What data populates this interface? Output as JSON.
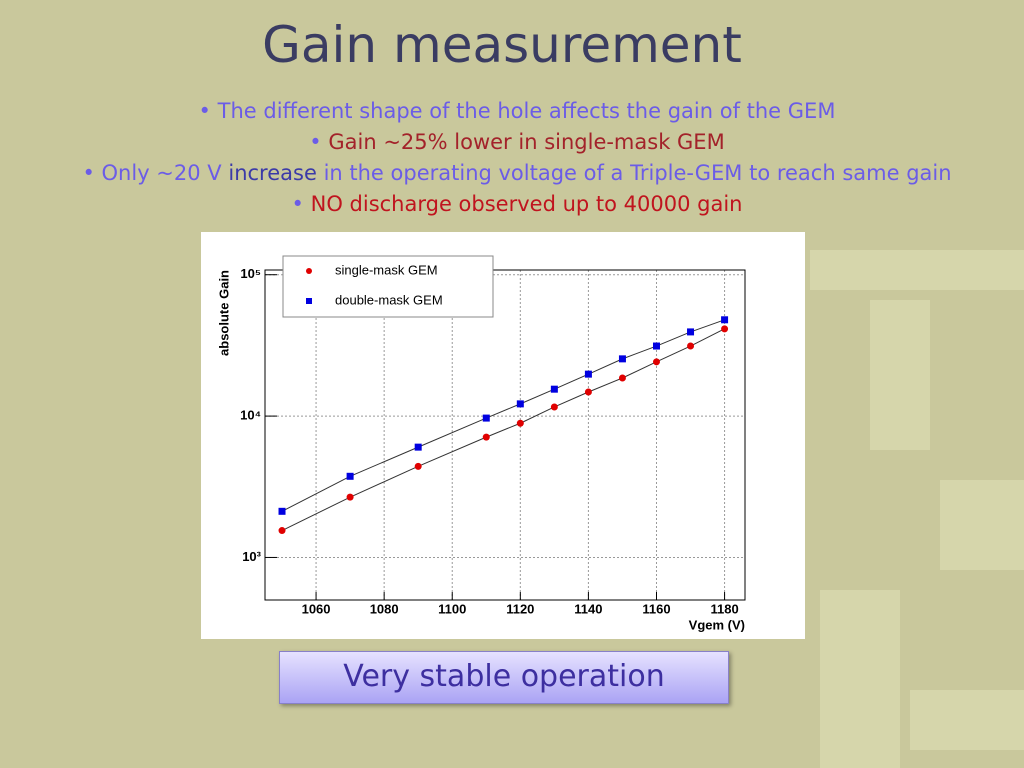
{
  "title": "Gain measurement",
  "bullets": [
    [
      {
        "text": "•",
        "color": "#6b5ce7"
      },
      {
        "text": "The different shape of the hole affects the gain of the GEM",
        "color": "#6b5ce7"
      }
    ],
    [
      {
        "text": "•",
        "color": "#6b5ce7"
      },
      {
        "text": "Gain ~25% lower in single-mask GEM",
        "color": "#a3222a"
      }
    ],
    [
      {
        "text": "•",
        "color": "#6b5ce7"
      },
      {
        "text": "Only ~20 V",
        "color": "#6b5ce7"
      },
      {
        "text": "increase",
        "color": "#3b3aa8"
      },
      {
        "text": "in the operating voltage of a Triple-GEM to reach same gain",
        "color": "#6b5ce7"
      }
    ],
    [
      {
        "text": "•",
        "color": "#6b5ce7"
      },
      {
        "text": "NO discharge observed up to 40000 gain",
        "color": "#c0141e"
      }
    ]
  ],
  "button": "Very stable operation",
  "chart_data": {
    "type": "line",
    "x_label": "Vgem (V)",
    "y_label": "absolute Gain",
    "x": [
      1050,
      1070,
      1090,
      1110,
      1120,
      1130,
      1140,
      1150,
      1160,
      1170,
      1180
    ],
    "series": [
      {
        "name": "single-mask GEM",
        "color": "#e00000",
        "marker": "circle",
        "values": [
          1550,
          2670,
          4410,
          7100,
          8900,
          11600,
          14800,
          18600,
          24200,
          31300,
          41400
        ]
      },
      {
        "name": "double-mask GEM",
        "color": "#0000e0",
        "marker": "square",
        "values": [
          2120,
          3750,
          6030,
          9680,
          12200,
          15500,
          19800,
          25400,
          31300,
          39400,
          48000
        ]
      }
    ],
    "xlim": [
      1045,
      1186
    ],
    "xticks": [
      1060,
      1080,
      1100,
      1120,
      1140,
      1160,
      1180
    ],
    "ylim": [
      500,
      108000
    ],
    "log_y": true,
    "yticks": [
      {
        "value": 1000,
        "label": "10³"
      },
      {
        "value": 10000,
        "label": "10⁴"
      },
      {
        "value": 100000,
        "label": "10⁵"
      }
    ],
    "grid": true,
    "legend": "upper left"
  }
}
